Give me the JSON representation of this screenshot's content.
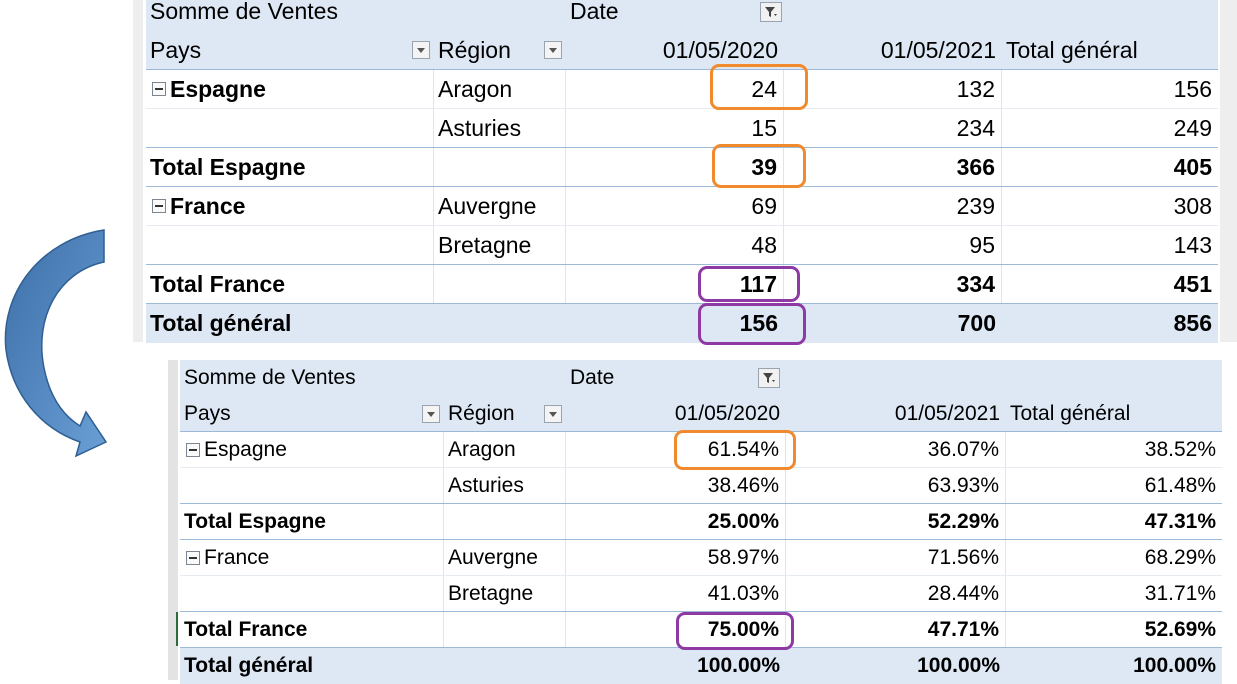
{
  "top": {
    "header1": {
      "measure": "Somme de Ventes",
      "date_label": "Date"
    },
    "header2": {
      "pays": "Pays",
      "region": "Région",
      "c1": "01/05/2020",
      "c2": "01/05/2021",
      "c3": "Total général"
    },
    "rows": [
      {
        "pays": "Espagne",
        "region": "Aragon",
        "v1": "24",
        "v2": "132",
        "v3": "156"
      },
      {
        "pays": "",
        "region": "Asturies",
        "v1": "15",
        "v2": "234",
        "v3": "249"
      },
      {
        "pays": "Total Espagne",
        "region": "",
        "v1": "39",
        "v2": "366",
        "v3": "405"
      },
      {
        "pays": "France",
        "region": "Auvergne",
        "v1": "69",
        "v2": "239",
        "v3": "308"
      },
      {
        "pays": "",
        "region": "Bretagne",
        "v1": "48",
        "v2": "95",
        "v3": "143"
      },
      {
        "pays": "Total France",
        "region": "",
        "v1": "117",
        "v2": "334",
        "v3": "451"
      },
      {
        "pays": "Total général",
        "region": "",
        "v1": "156",
        "v2": "700",
        "v3": "856"
      }
    ]
  },
  "bottom": {
    "header1": {
      "measure": "Somme de Ventes",
      "date_label": "Date"
    },
    "header2": {
      "pays": "Pays",
      "region": "Région",
      "c1": "01/05/2020",
      "c2": "01/05/2021",
      "c3": "Total général"
    },
    "rows": [
      {
        "pays": "Espagne",
        "region": "Aragon",
        "v1": "61.54%",
        "v2": "36.07%",
        "v3": "38.52%"
      },
      {
        "pays": "",
        "region": "Asturies",
        "v1": "38.46%",
        "v2": "63.93%",
        "v3": "61.48%"
      },
      {
        "pays": "Total Espagne",
        "region": "",
        "v1": "25.00%",
        "v2": "52.29%",
        "v3": "47.31%"
      },
      {
        "pays": "France",
        "region": "Auvergne",
        "v1": "58.97%",
        "v2": "71.56%",
        "v3": "68.29%"
      },
      {
        "pays": "",
        "region": "Bretagne",
        "v1": "41.03%",
        "v2": "28.44%",
        "v3": "31.71%"
      },
      {
        "pays": "Total France",
        "region": "",
        "v1": "75.00%",
        "v2": "47.71%",
        "v3": "52.69%"
      },
      {
        "pays": "Total général",
        "region": "",
        "v1": "100.00%",
        "v2": "100.00%",
        "v3": "100.00%"
      }
    ]
  },
  "colors": {
    "header_bg": "#dde8f4",
    "orange": "#f08a2d",
    "purple": "#8e3aa5",
    "arrow": "#4f81bd"
  },
  "icons": [
    "curved-arrow-icon",
    "filter-icon",
    "dropdown-icon",
    "collapse-minus-icon"
  ]
}
